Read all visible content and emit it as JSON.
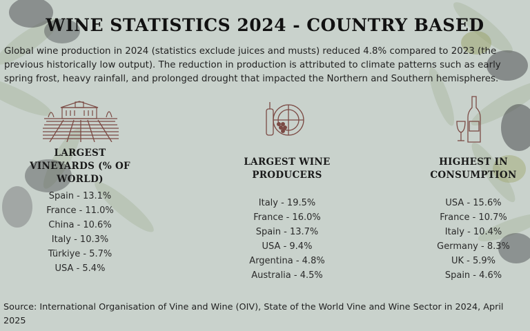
{
  "title": "WINE STATISTICS 2024 - COUNTRY BASED",
  "intro": "Global wine production in 2024 (statistics exclude juices and musts) reduced 4.8% compared to 2023 (the previous historically low output). The reduction in production is attributed to climate patterns such as early spring frost, heavy rainfall, and prolonged drought that impacted the Northern and Southern hemispheres.",
  "columns": [
    {
      "heading": "LARGEST VINEYARDS (% OF WORLD)",
      "icon": "vineyard-icon",
      "items": [
        "Spain - 13.1%",
        "France - 11.0%",
        "China - 10.6%",
        "Italy - 10.3%",
        "Türkiye - 5.7%",
        "USA - 5.4%"
      ]
    },
    {
      "heading": "LARGEST WINE PRODUCERS",
      "icon": "wine-barrel-icon",
      "items": [
        "Italy - 19.5%",
        "France - 16.0%",
        "Spain - 13.7%",
        "USA - 9.4%",
        "Argentina - 4.8%",
        "Australia - 4.5%"
      ]
    },
    {
      "heading": "HIGHEST IN CONSUMPTION",
      "icon": "wine-bottle-glass-icon",
      "items": [
        "USA - 15.6%",
        "France - 10.7%",
        "Italy - 10.4%",
        "Germany - 8.3%",
        "UK - 5.9%",
        "Spain - 4.6%"
      ]
    }
  ],
  "source": "Source: International Organisation of Vine and Wine (OIV), State of the World Vine and Wine Sector in 2024, April 2025",
  "colors": {
    "background": "#c9d2cc",
    "leaf": "#a9b8a6",
    "olive_dark": "#4f4f53",
    "olive_green": "#8f9b6a",
    "sketch": "#7b4a44"
  }
}
